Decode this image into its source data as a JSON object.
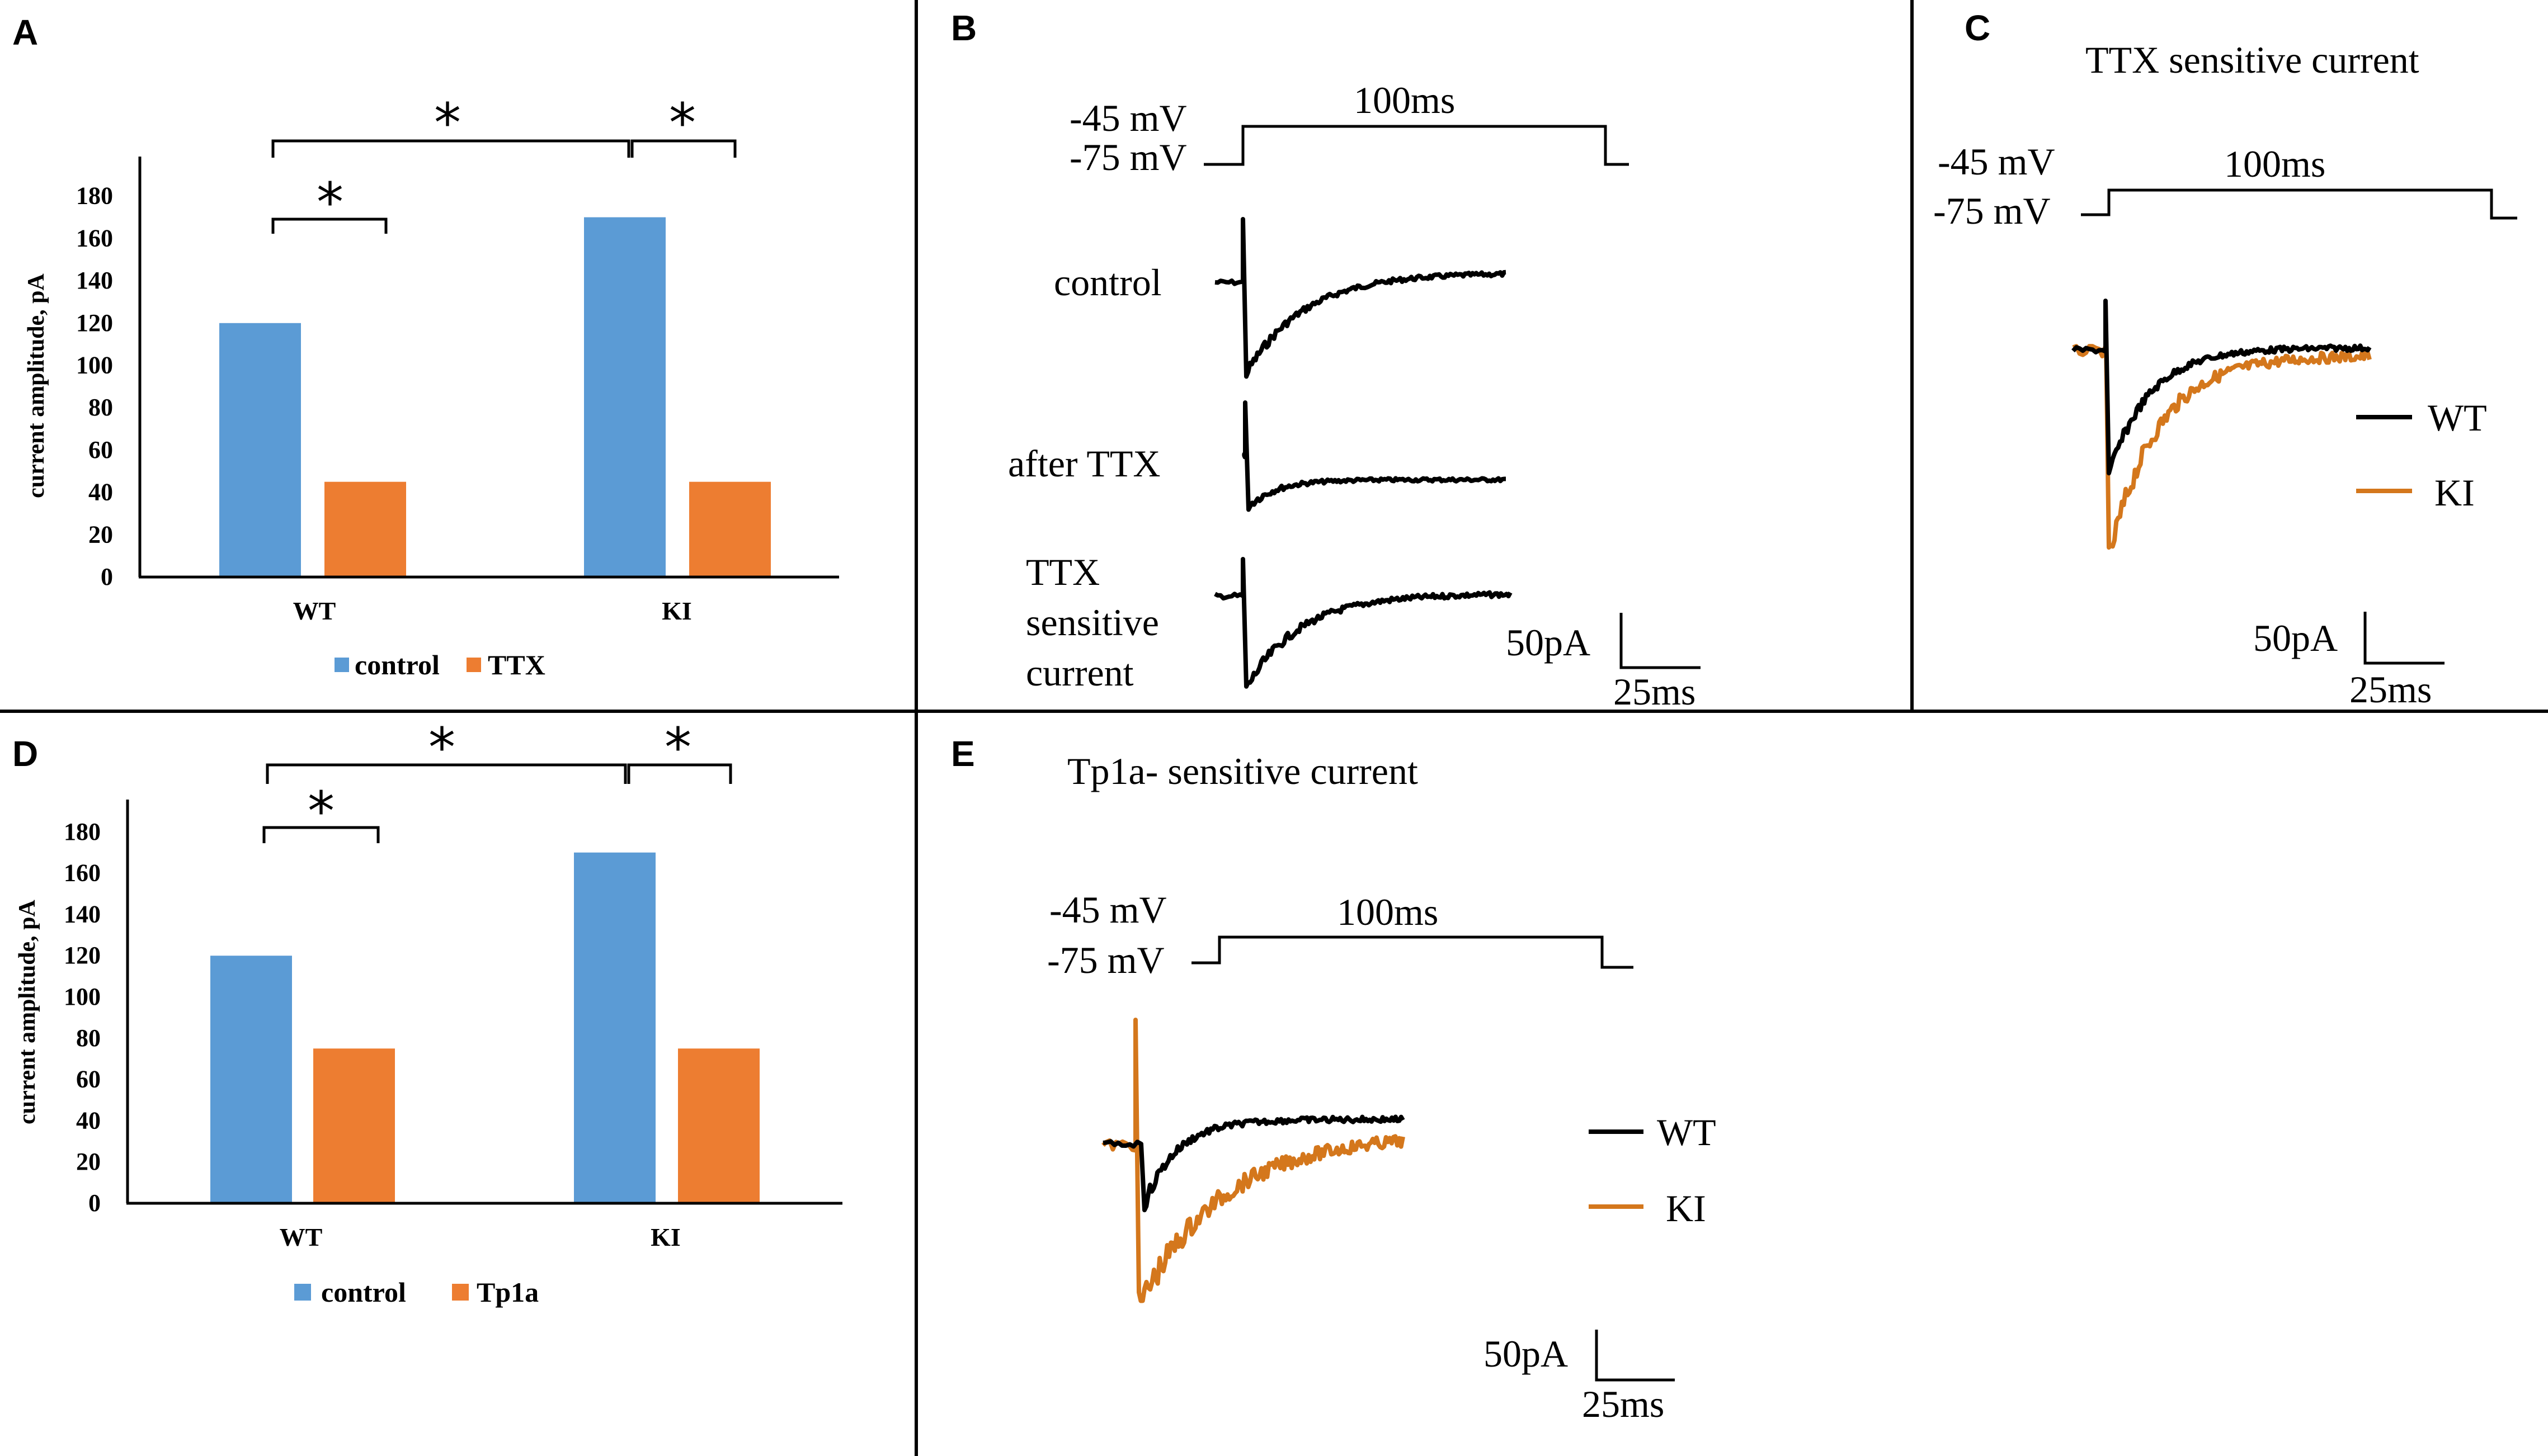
{
  "colors": {
    "control": "#5b9bd5",
    "treated": "#ed7d31",
    "wt_trace": "#000000",
    "ki_trace": "#d4771c"
  },
  "panel_labels": {
    "A": "A",
    "B": "B",
    "C": "C",
    "D": "D",
    "E": "E"
  },
  "chart_data": [
    {
      "id": "A",
      "type": "bar",
      "categories": [
        "WT",
        "KI"
      ],
      "series": [
        {
          "name": "control",
          "values": [
            120,
            170
          ]
        },
        {
          "name": "TTX",
          "values": [
            45,
            45
          ]
        }
      ],
      "ylabel": "current amplitude, pA",
      "yticks": [
        "0",
        "20",
        "40",
        "60",
        "80",
        "100",
        "120",
        "140",
        "160",
        "180"
      ],
      "ylim": [
        0,
        200
      ],
      "significance": [
        "*",
        "*",
        "*"
      ],
      "legend_position": "bottom"
    },
    {
      "id": "D",
      "type": "bar",
      "categories": [
        "WT",
        "KI"
      ],
      "series": [
        {
          "name": "control",
          "values": [
            120,
            170
          ]
        },
        {
          "name": "Tp1a",
          "values": [
            75,
            75
          ]
        }
      ],
      "ylabel": "current amplitude, pA",
      "yticks": [
        "0",
        "20",
        "40",
        "60",
        "80",
        "100",
        "120",
        "140",
        "160",
        "180"
      ],
      "ylim": [
        0,
        200
      ],
      "significance": [
        "*",
        "*",
        "*"
      ],
      "legend_position": "bottom"
    }
  ],
  "panel_b": {
    "protocol": {
      "v_hold": "-75 mV",
      "v_step": "-45 mV",
      "duration": "100ms"
    },
    "trace_labels": [
      "control",
      "after TTX",
      "TTX",
      "sensitive",
      "current"
    ],
    "scale": {
      "amp": "50pA",
      "time": "25ms"
    }
  },
  "panel_c": {
    "title": "TTX sensitive current",
    "protocol": {
      "v_hold": "-75 mV",
      "v_step": "-45 mV",
      "duration": "100ms"
    },
    "legend": [
      "WT",
      "KI"
    ],
    "scale": {
      "amp": "50pA",
      "time": "25ms"
    }
  },
  "panel_e": {
    "title": "Tp1a- sensitive current",
    "protocol": {
      "v_hold": "-75 mV",
      "v_step": "-45 mV",
      "duration": "100ms"
    },
    "legend": [
      "WT",
      "KI"
    ],
    "scale": {
      "amp": "50pA",
      "time": "25ms"
    }
  }
}
